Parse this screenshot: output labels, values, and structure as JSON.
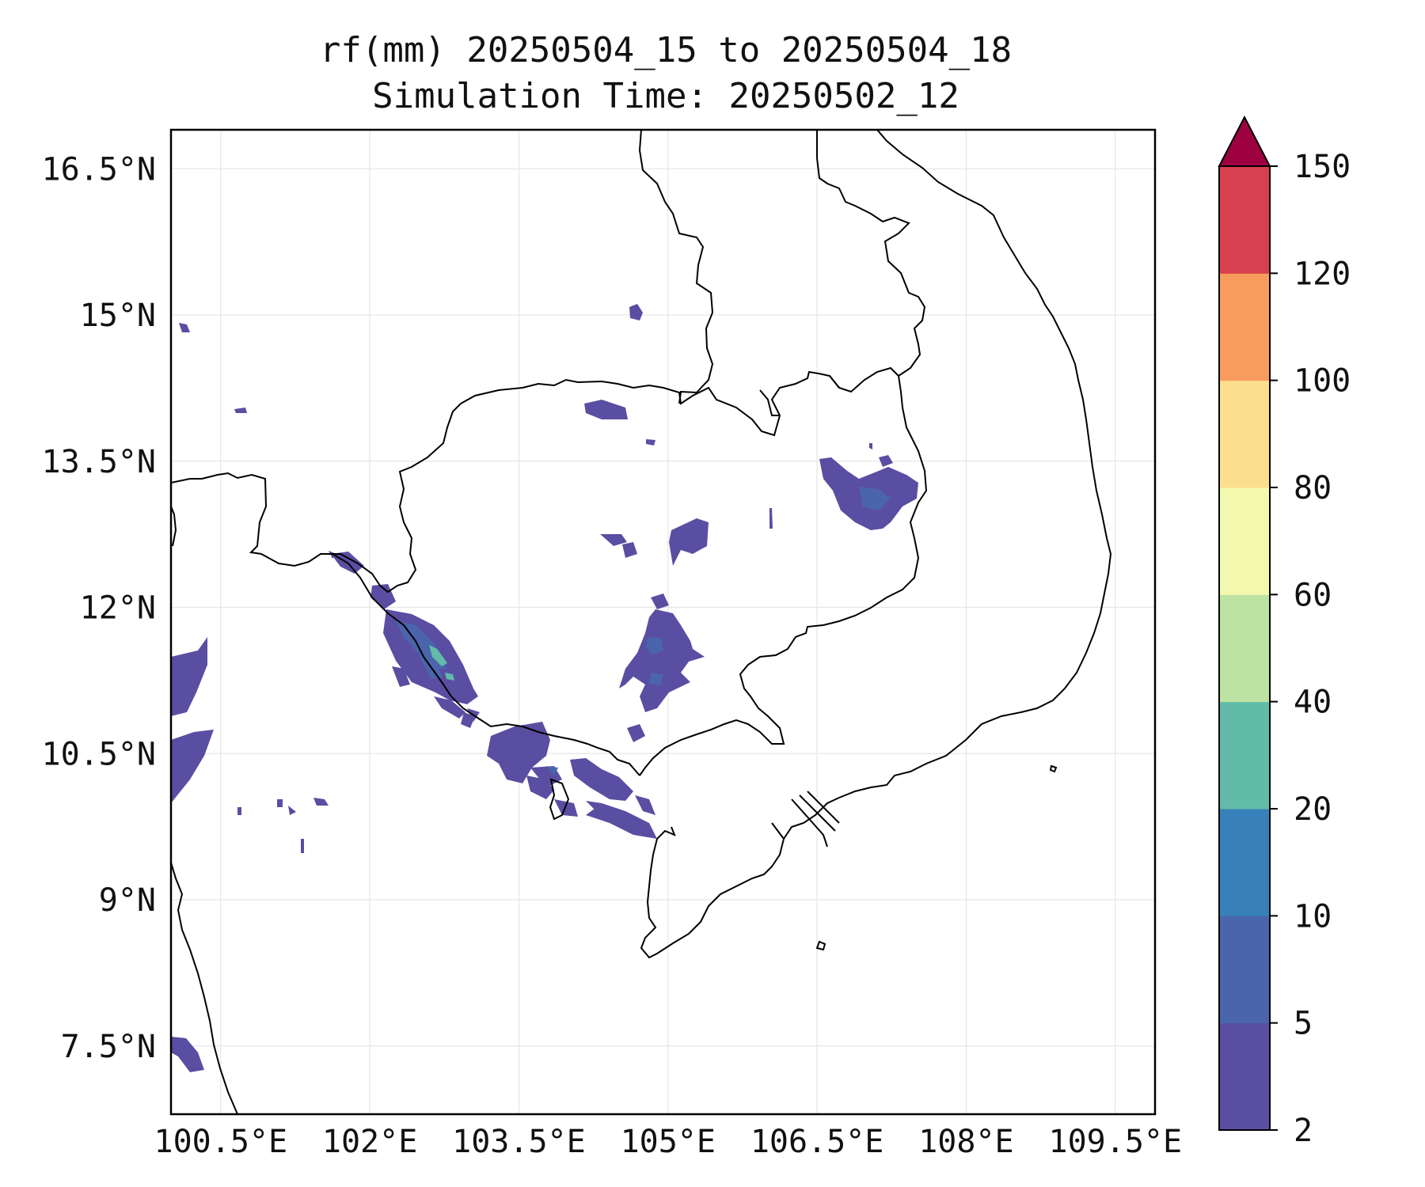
{
  "title": {
    "line1": "rf(mm) 20250504_15 to 20250504_18",
    "line2": "Simulation Time: 20250502_12"
  },
  "map": {
    "lon_range": [
      100.0,
      109.9
    ],
    "lat_range": [
      6.8,
      16.9
    ],
    "lon_ticks": [
      100.5,
      102,
      103.5,
      105,
      106.5,
      108,
      109.5
    ],
    "lat_ticks": [
      7.5,
      9,
      10.5,
      12,
      13.5,
      15,
      16.5
    ],
    "lon_tick_labels": [
      "100.5°E",
      "102°E",
      "103.5°E",
      "105°E",
      "106.5°E",
      "108°E",
      "109.5°E"
    ],
    "lat_tick_labels": [
      "7.5°N",
      "9°N",
      "10.5°N",
      "12°N",
      "13.5°N",
      "15°N",
      "16.5°N"
    ],
    "grid": true
  },
  "colorbar": {
    "levels": [
      2,
      5,
      10,
      20,
      40,
      60,
      80,
      100,
      120,
      150
    ],
    "labels": [
      "2",
      "5",
      "10",
      "20",
      "40",
      "60",
      "80",
      "100",
      "120",
      "150"
    ],
    "colors": [
      "#5a4ea2",
      "#4a65ac",
      "#3880b9",
      "#62bba9",
      "#bde3a2",
      "#f2f9ae",
      "#fbdf8f",
      "#f89c5d",
      "#d7404e"
    ],
    "extend_color": "#9e0142",
    "extend": "max"
  },
  "rain_color": "#5a4ea2",
  "rain_color_mid": "#4a65ac",
  "rain_color_high": "#62bba9"
}
